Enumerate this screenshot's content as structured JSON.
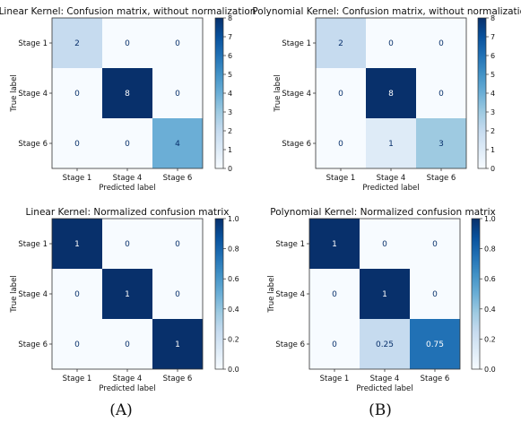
{
  "panel_captions": [
    "(A)",
    "(B)"
  ],
  "chart_data": [
    {
      "type": "heatmap",
      "title": "Linear Kernel: Confusion matrix, without normalization",
      "xlabel": "Predicted label",
      "ylabel": "True label",
      "x_categories": [
        "Stage 1",
        "Stage 4",
        "Stage 6"
      ],
      "y_categories": [
        "Stage 1",
        "Stage 4",
        "Stage 6"
      ],
      "values": [
        [
          2,
          0,
          0
        ],
        [
          0,
          8,
          0
        ],
        [
          0,
          0,
          4
        ]
      ],
      "cell_labels": [
        [
          "2",
          "0",
          "0"
        ],
        [
          "0",
          "8",
          "0"
        ],
        [
          "0",
          "0",
          "4"
        ]
      ],
      "colorbar": {
        "range": [
          0,
          8
        ],
        "ticks": [
          "0",
          "1",
          "2",
          "3",
          "4",
          "5",
          "6",
          "7",
          "8"
        ]
      },
      "colormap": [
        "#f7fbff",
        "#08306b"
      ]
    },
    {
      "type": "heatmap",
      "title": "Polynomial Kernel: Confusion matrix, without normalization",
      "xlabel": "Predicted label",
      "ylabel": "True label",
      "x_categories": [
        "Stage 1",
        "Stage 4",
        "Stage 6"
      ],
      "y_categories": [
        "Stage 1",
        "Stage 4",
        "Stage 6"
      ],
      "values": [
        [
          2,
          0,
          0
        ],
        [
          0,
          8,
          0
        ],
        [
          0,
          1,
          3
        ]
      ],
      "cell_labels": [
        [
          "2",
          "0",
          "0"
        ],
        [
          "0",
          "8",
          "0"
        ],
        [
          "0",
          "1",
          "3"
        ]
      ],
      "colorbar": {
        "range": [
          0,
          8
        ],
        "ticks": [
          "0",
          "1",
          "2",
          "3",
          "4",
          "5",
          "6",
          "7",
          "8"
        ]
      },
      "colormap": [
        "#f7fbff",
        "#08306b"
      ]
    },
    {
      "type": "heatmap",
      "title": "Linear Kernel: Normalized confusion matrix",
      "xlabel": "Predicted label",
      "ylabel": "True label",
      "x_categories": [
        "Stage 1",
        "Stage 4",
        "Stage 6"
      ],
      "y_categories": [
        "Stage 1",
        "Stage 4",
        "Stage 6"
      ],
      "values": [
        [
          1,
          0,
          0
        ],
        [
          0,
          1,
          0
        ],
        [
          0,
          0,
          1
        ]
      ],
      "cell_labels": [
        [
          "1",
          "0",
          "0"
        ],
        [
          "0",
          "1",
          "0"
        ],
        [
          "0",
          "0",
          "1"
        ]
      ],
      "colorbar": {
        "range": [
          0,
          1
        ],
        "ticks": [
          "0.0",
          "0.2",
          "0.4",
          "0.6",
          "0.8",
          "1.0"
        ]
      },
      "colormap": [
        "#f7fbff",
        "#08306b"
      ]
    },
    {
      "type": "heatmap",
      "title": "Polynomial Kernel: Normalized confusion matrix",
      "xlabel": "Predicted label",
      "ylabel": "True label",
      "x_categories": [
        "Stage 1",
        "Stage 4",
        "Stage 6"
      ],
      "y_categories": [
        "Stage 1",
        "Stage 4",
        "Stage 6"
      ],
      "values": [
        [
          1,
          0,
          0
        ],
        [
          0,
          1,
          0
        ],
        [
          0,
          0.25,
          0.75
        ]
      ],
      "cell_labels": [
        [
          "1",
          "0",
          "0"
        ],
        [
          "0",
          "1",
          "0"
        ],
        [
          "0",
          "0.25",
          "0.75"
        ]
      ],
      "colorbar": {
        "range": [
          0,
          1
        ],
        "ticks": [
          "0.0",
          "0.2",
          "0.4",
          "0.6",
          "0.8",
          "1.0"
        ]
      },
      "colormap": [
        "#f7fbff",
        "#08306b"
      ]
    }
  ]
}
